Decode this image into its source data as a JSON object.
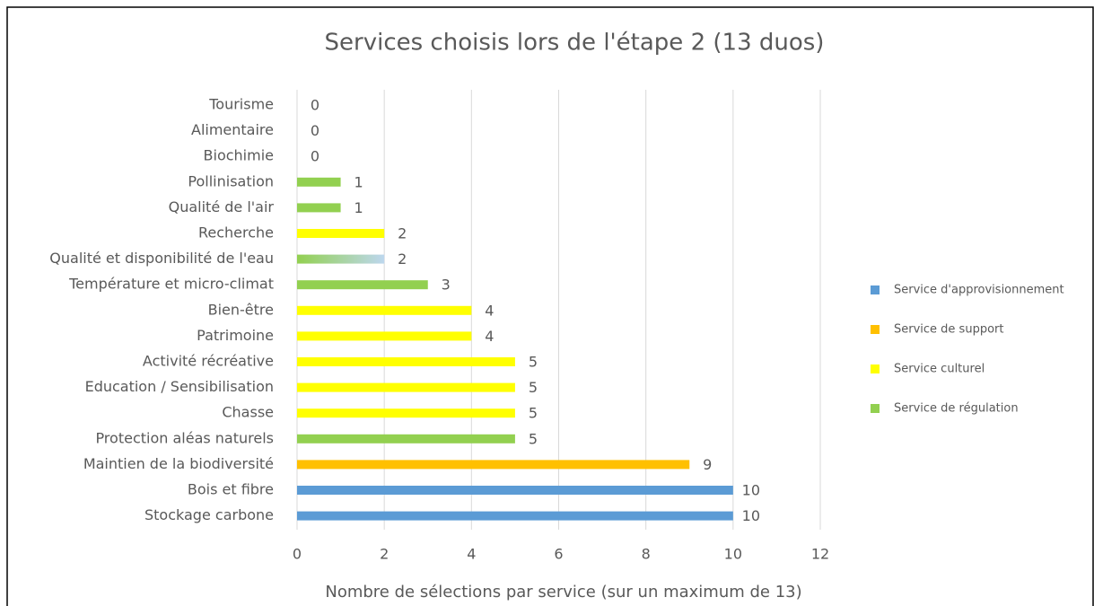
{
  "chart_data": {
    "type": "hbar",
    "title": "Services choisis lors de l'étape 2 (13 duos)",
    "x_label": "Nombre de sélections par service (sur un maximum de 13)",
    "categories": [
      "Tourisme",
      "Alimentaire",
      "Biochimie",
      "Pollinisation",
      "Qualité de l'air",
      "Recherche",
      "Qualité et disponibilité de l'eau",
      "Température et micro-climat",
      "Bien-être",
      "Patrimoine",
      "Activité récréative",
      "Education / Sensibilisation",
      "Chasse",
      "Protection aléas naturels",
      "Maintien de la biodiversité",
      "Bois et fibre",
      "Stockage carbone"
    ],
    "values": [
      0,
      0,
      0,
      1,
      1,
      2,
      2,
      3,
      4,
      4,
      5,
      5,
      5,
      5,
      9,
      10,
      10
    ],
    "colors": [
      "#92d050",
      "#92d050",
      "#92d050",
      "#92d050",
      "#92d050",
      "#ffff00",
      [
        "#92d050",
        "#bdd7ee"
      ],
      "#92d050",
      "#ffff00",
      "#ffff00",
      "#ffff00",
      "#ffff00",
      "#ffff00",
      "#92d050",
      "#ffc000",
      "#5b9bd5",
      "#5b9bd5"
    ],
    "xlim": [
      0,
      12
    ],
    "xticks": [
      0,
      2,
      4,
      6,
      8,
      10,
      12
    ],
    "grid": true,
    "legend_position": "right",
    "legend": [
      {
        "name": "Service d'approvisionnement",
        "color": "#5b9bd5"
      },
      {
        "name": "Service de support",
        "color": "#ffc000"
      },
      {
        "name": "Service culturel",
        "color": "#ffff00"
      },
      {
        "name": "Service de régulation",
        "color": "#92d050"
      }
    ]
  }
}
